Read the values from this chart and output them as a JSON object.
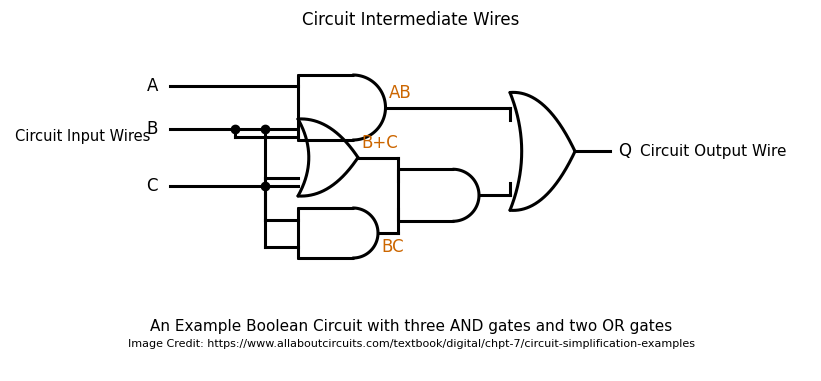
{
  "title_top": "Circuit Intermediate Wires",
  "label_input": "Circuit Input Wires",
  "label_output": "Circuit Output Wire",
  "label_A": "A",
  "label_B": "B",
  "label_C": "C",
  "label_Q": "Q",
  "label_AB": "AB",
  "label_BC_plus": "B+C",
  "label_BC": "BC",
  "caption": "An Example Boolean Circuit with three AND gates and two OR gates",
  "credit": "Image Credit: https://www.allaboutcircuits.com/textbook/digital/chpt-7/circuit-simplification-examples",
  "orange_color": "#CC6600",
  "black_color": "#000000",
  "bg_color": "#ffffff",
  "lw": 2.2
}
